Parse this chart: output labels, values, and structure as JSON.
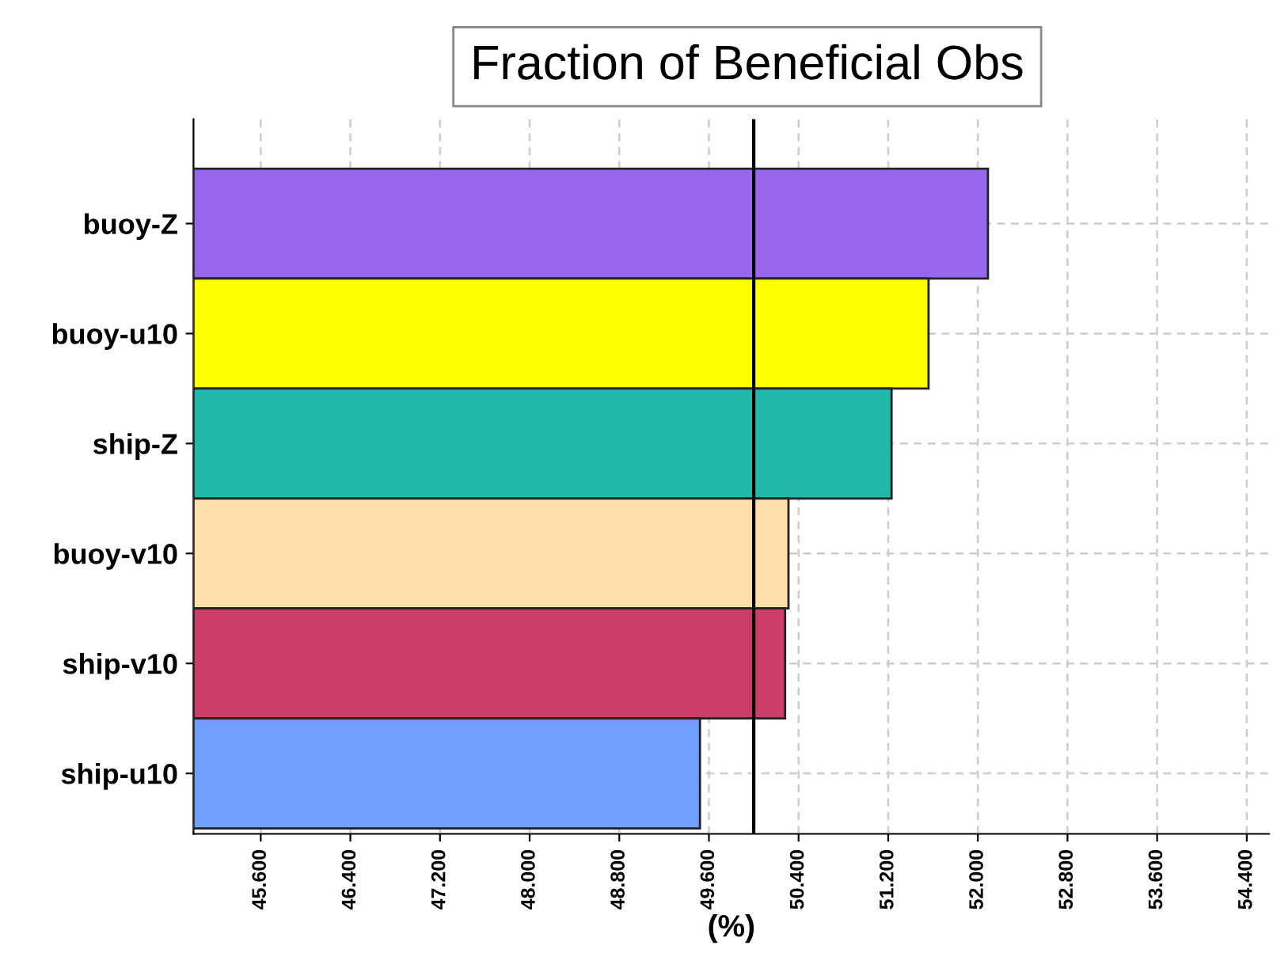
{
  "chart_data": {
    "type": "bar",
    "orientation": "horizontal",
    "title": "Fraction of Beneficial Obs",
    "xlabel": "(%)",
    "categories": [
      "buoy-Z",
      "buoy-u10",
      "ship-Z",
      "buoy-v10",
      "ship-v10",
      "ship-u10"
    ],
    "values": [
      52.09,
      51.56,
      51.23,
      50.31,
      50.28,
      49.52
    ],
    "colors": [
      "#9966ee",
      "#ffff00",
      "#20b8a8",
      "#ffe0aa",
      "#cc3d6a",
      "#6fa0ff"
    ],
    "xlim": [
      45,
      54.6
    ],
    "xticks": [
      {
        "value": 45.6,
        "label": "45.600"
      },
      {
        "value": 46.4,
        "label": "46.400"
      },
      {
        "value": 47.2,
        "label": "47.200"
      },
      {
        "value": 48.0,
        "label": "48.000"
      },
      {
        "value": 48.8,
        "label": "48.800"
      },
      {
        "value": 49.6,
        "label": "49.600"
      },
      {
        "value": 50.4,
        "label": "50.400"
      },
      {
        "value": 51.2,
        "label": "51.200"
      },
      {
        "value": 52.0,
        "label": "52.000"
      },
      {
        "value": 52.8,
        "label": "52.800"
      },
      {
        "value": 53.6,
        "label": "53.600"
      },
      {
        "value": 54.4,
        "label": "54.400"
      }
    ],
    "ref_lines": [
      {
        "axis": "x",
        "value": 50,
        "color": "#000000"
      }
    ],
    "grid": true,
    "legend": false
  }
}
